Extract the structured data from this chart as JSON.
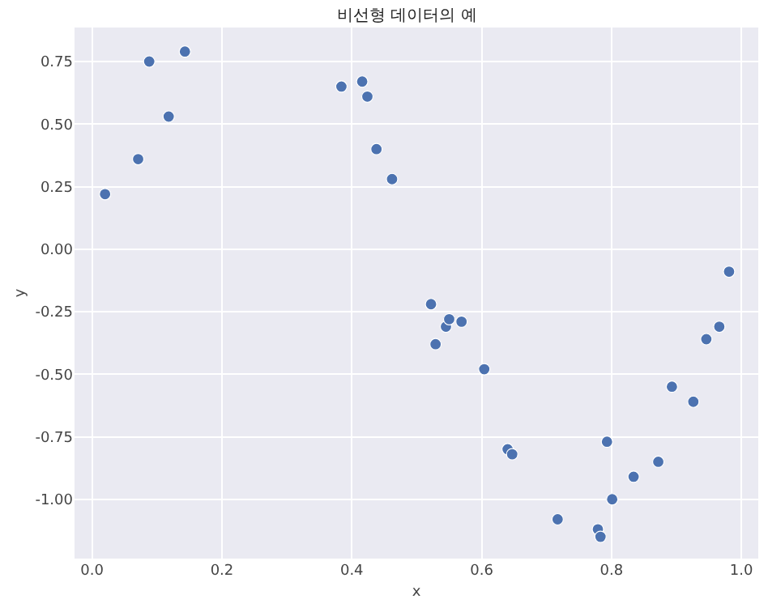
{
  "chart_data": {
    "type": "scatter",
    "title": "비선형 데이터의 예",
    "xlabel": "x",
    "ylabel": "y",
    "x": [
      0.02,
      0.071,
      0.088,
      0.118,
      0.143,
      0.384,
      0.416,
      0.424,
      0.438,
      0.462,
      0.522,
      0.529,
      0.545,
      0.55,
      0.569,
      0.604,
      0.64,
      0.647,
      0.717,
      0.779,
      0.783,
      0.793,
      0.801,
      0.834,
      0.872,
      0.893,
      0.926,
      0.946,
      0.966,
      0.981
    ],
    "series": [
      {
        "color": "#4c72b0",
        "values": [
          0.22,
          0.36,
          0.75,
          0.53,
          0.79,
          0.65,
          0.67,
          0.61,
          0.4,
          0.28,
          -0.22,
          -0.38,
          -0.31,
          -0.28,
          -0.29,
          -0.48,
          -0.8,
          -0.82,
          -1.08,
          -1.12,
          -1.15,
          -0.77,
          -1.0,
          -0.91,
          -0.85,
          -0.55,
          -0.61,
          -0.36,
          -0.31,
          -0.09
        ]
      }
    ],
    "xlim": [
      -0.027,
      1.026
    ],
    "ylim": [
      -1.237,
      0.886
    ],
    "xticks": [
      {
        "value": 0,
        "label": "0.0"
      },
      0.2,
      0.4,
      0.6,
      0.8,
      {
        "value": 1,
        "label": "1.0"
      }
    ],
    "yticks": [
      {
        "value": -1,
        "label": "-1.00"
      },
      -0.75,
      {
        "value": -0.5,
        "label": "-0.50"
      },
      -0.25,
      {
        "value": 0,
        "label": "0.00"
      },
      0.25,
      {
        "value": 0.5,
        "label": "0.50"
      },
      0.75
    ],
    "grid": true,
    "marker": "circle"
  }
}
